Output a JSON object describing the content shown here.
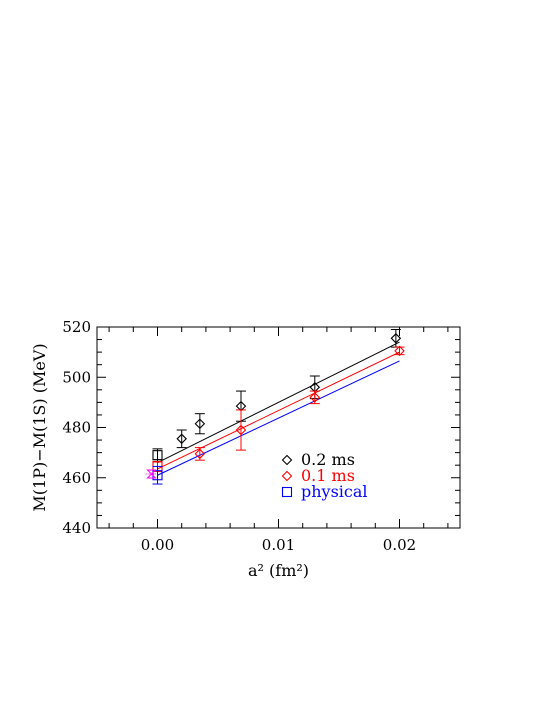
{
  "chart_data": {
    "type": "scatter",
    "title": "",
    "xlabel": "a² (fm²)",
    "ylabel": "M(1P)−M(1S) (MeV)",
    "xlim": [
      -0.005,
      0.025
    ],
    "ylim": [
      440,
      520
    ],
    "x_ticks": [
      0.0,
      0.01,
      0.02
    ],
    "x_tick_labels": [
      "0.00",
      "0.01",
      "0.02"
    ],
    "y_ticks": [
      440,
      460,
      480,
      500,
      520
    ],
    "y_tick_labels": [
      "440",
      "460",
      "480",
      "500",
      "520"
    ],
    "grid": false,
    "legend_position": "bottom-right",
    "series": [
      {
        "name": "0.2 ms",
        "color": "#000000",
        "marker": "diamond",
        "points": [
          {
            "x": 0.002,
            "y": 475.5,
            "err": 3.5
          },
          {
            "x": 0.0035,
            "y": 481.5,
            "err": 4.0
          },
          {
            "x": 0.0069,
            "y": 488.5,
            "err": 6.0
          },
          {
            "x": 0.013,
            "y": 496.0,
            "err": 4.5
          },
          {
            "x": 0.0197,
            "y": 515.5,
            "err": 3.5
          }
        ],
        "fit": {
          "x": [
            0.0,
            0.02
          ],
          "y": [
            466.0,
            514.0
          ]
        },
        "extrapolation": {
          "x": 0.0,
          "y": 469.0,
          "err": 2.5
        }
      },
      {
        "name": "0.1 ms",
        "color": "#ff0000",
        "marker": "diamond",
        "points": [
          {
            "x": 0.0035,
            "y": 469.5,
            "err": 2.5
          },
          {
            "x": 0.0069,
            "y": 479.0,
            "err": 8.0
          },
          {
            "x": 0.013,
            "y": 492.0,
            "err": 2.5
          },
          {
            "x": 0.02,
            "y": 510.5,
            "err": 1.5
          }
        ],
        "fit": {
          "x": [
            0.0,
            0.02
          ],
          "y": [
            463.5,
            510.0
          ]
        },
        "extrapolation": {
          "x": 0.0,
          "y": 464.5,
          "err": 2.0
        }
      },
      {
        "name": "physical",
        "color": "#0000ff",
        "marker": "square",
        "points": [],
        "fit": {
          "x": [
            0.0,
            0.02
          ],
          "y": [
            461.0,
            506.5
          ]
        },
        "extrapolation": {
          "x": 0.0,
          "y": 461.0,
          "err": 3.5
        }
      }
    ],
    "annotations": [
      {
        "x": -0.0005,
        "y": 461.5,
        "color": "#ff00ff",
        "marker": "hourglass"
      }
    ]
  }
}
